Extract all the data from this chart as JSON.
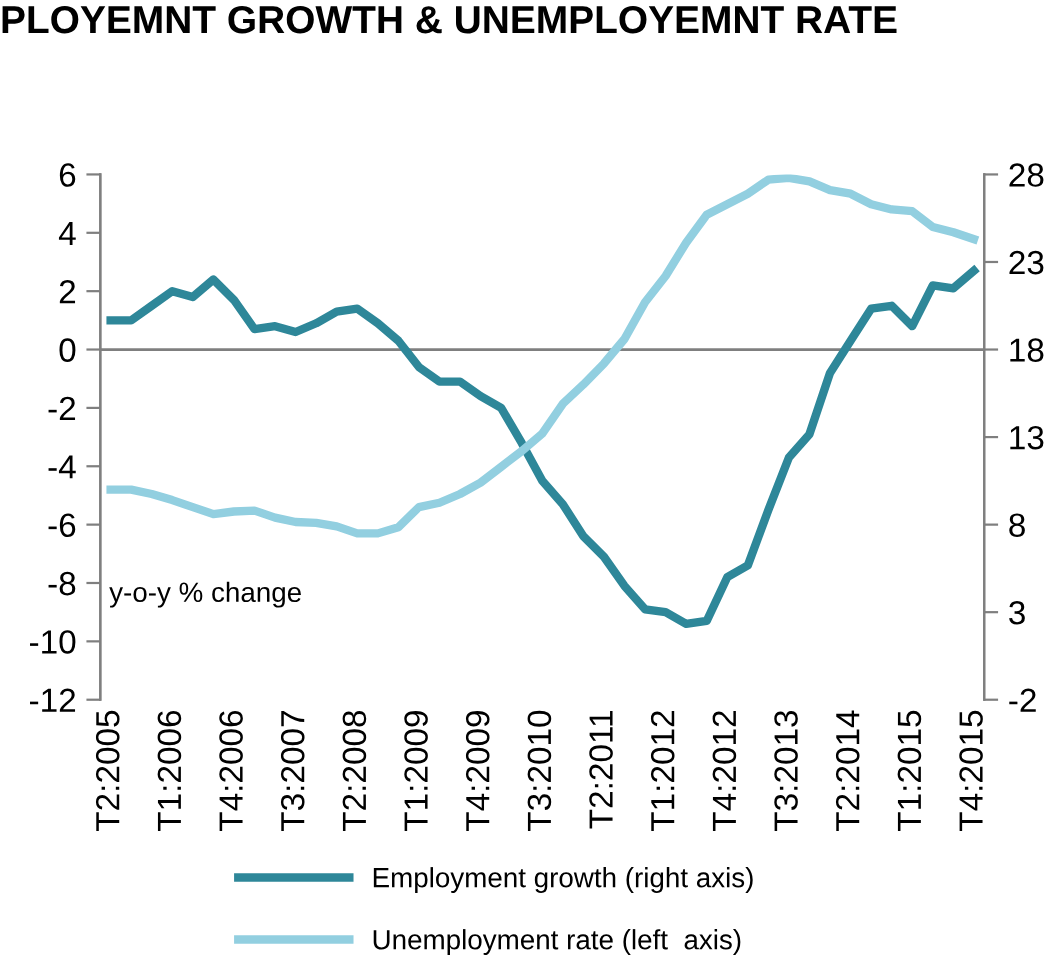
{
  "chart_data": {
    "type": "line",
    "title": "PLOYEMNT GROWTH & UNEMPLOYEMNT RATE",
    "categories": [
      "T2:2005",
      null,
      null,
      "T1:2006",
      null,
      null,
      "T4:2006",
      null,
      null,
      "T3:2007",
      null,
      null,
      "T2:2008",
      null,
      null,
      "T1:2009",
      null,
      null,
      "T4:2009",
      null,
      null,
      "T3:2010",
      null,
      null,
      "T2:2011",
      null,
      null,
      "T1:2012",
      null,
      null,
      "T4:2012",
      null,
      null,
      "T3:2013",
      null,
      null,
      "T2:2014",
      null,
      null,
      "T1:2015",
      null,
      null,
      "T4:2015"
    ],
    "series": [
      {
        "name": "Employment growth (right axis)",
        "color": "#2e8799",
        "axis": "y",
        "values": [
          1.0,
          1.0,
          1.5,
          2.0,
          1.8,
          2.4,
          1.7,
          0.7,
          0.8,
          0.6,
          0.9,
          1.3,
          1.4,
          0.9,
          0.3,
          -0.6,
          -1.1,
          -1.1,
          -1.6,
          -2.0,
          -3.2,
          -4.5,
          -5.3,
          -6.4,
          -7.1,
          -8.1,
          -8.9,
          -9.0,
          -9.4,
          -9.3,
          -7.8,
          -7.4,
          -5.5,
          -3.7,
          -2.9,
          -0.8,
          0.3,
          1.4,
          1.5,
          0.8,
          2.2,
          2.1,
          2.7
        ]
      },
      {
        "name": "Unemployment rate (left  axis)",
        "color": "#92cfe0",
        "axis": "y2",
        "values": [
          10.0,
          10.0,
          9.75,
          9.4,
          9.0,
          8.6,
          8.75,
          8.8,
          8.4,
          8.15,
          8.1,
          7.9,
          7.5,
          7.5,
          7.85,
          9.0,
          9.25,
          9.75,
          10.4,
          11.3,
          12.2,
          13.2,
          14.9,
          16.0,
          17.2,
          18.6,
          20.7,
          22.2,
          24.1,
          25.7,
          26.3,
          26.9,
          27.7,
          27.8,
          27.6,
          27.1,
          26.9,
          26.3,
          26.0,
          25.9,
          25.0,
          24.7,
          24.3
        ]
      }
    ],
    "ylim": [
      -12,
      6
    ],
    "yticks": [
      -12,
      -10,
      -8,
      -6,
      -4,
      -2,
      0,
      2,
      4,
      6
    ],
    "y2lim": [
      -2,
      28
    ],
    "y2ticks": [
      -2,
      3,
      8,
      13,
      18,
      23,
      28
    ],
    "ref_lines": [
      {
        "axis": "y",
        "value": 0,
        "color": "#7f7f7f"
      }
    ],
    "annotations": [
      "y-o-y % change"
    ],
    "legend": "bottom",
    "grid": false,
    "marker": "none",
    "line_style": "solid"
  }
}
